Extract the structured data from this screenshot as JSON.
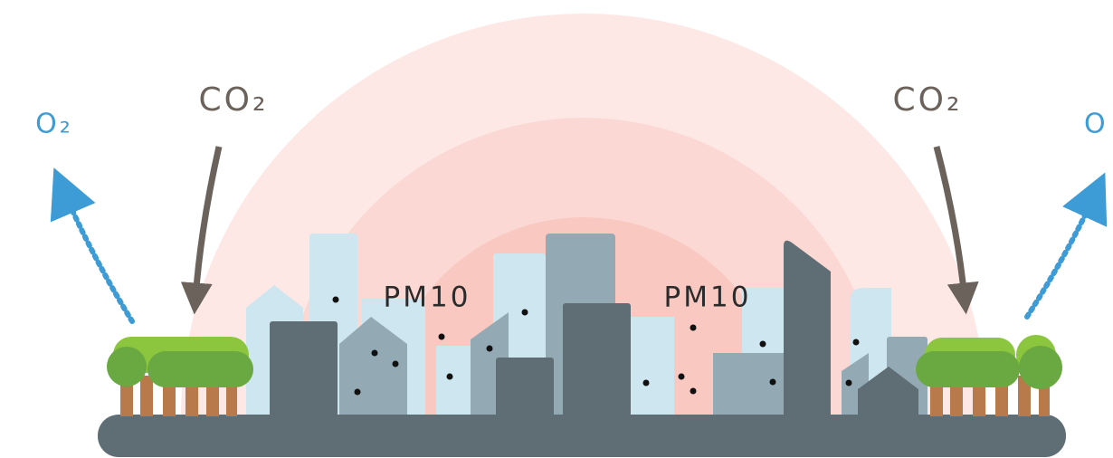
{
  "labels": {
    "co2_left": "CO₂",
    "co2_right": "CO₂",
    "o2_left": "O₂",
    "o2_right": "O",
    "pm10_left": "PM10",
    "pm10_right": "PM10"
  }
}
